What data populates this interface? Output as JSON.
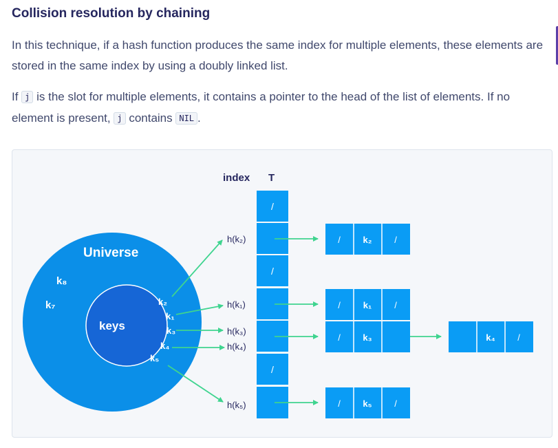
{
  "heading": "Collision resolution by chaining",
  "para1": "In this technique, if a hash function produces the same index for multiple elements, these elements are stored in the same index by using a doubly linked list.",
  "para2": {
    "t1": "If ",
    "c1": "j",
    "t2": " is the slot for multiple elements, it contains a pointer to the head of the list of elements. If no element is present, ",
    "c2": "j",
    "t3": " contains ",
    "c3": "NIL",
    "t4": "."
  },
  "diagram": {
    "index_header": "index",
    "table_header": "T",
    "universe_label": "Universe",
    "keys_label": "keys",
    "outer_keys": [
      "k₈",
      "k₇"
    ],
    "inner_keys": [
      "k₂",
      "k₁",
      "k₃",
      "k₄",
      "k₅"
    ],
    "slots": [
      "/",
      "",
      "/",
      "",
      "",
      "/",
      ""
    ],
    "hash_labels": [
      "h(k₂)",
      "h(k₁)",
      "h(k₃)",
      "h(k₄)",
      "h(k₅)"
    ],
    "nodes": [
      {
        "prev": "/",
        "key": "k₂",
        "next": "/"
      },
      {
        "prev": "/",
        "key": "k₁",
        "next": "/"
      },
      {
        "prev": "/",
        "key": "k₃",
        "next": ""
      },
      {
        "prev": "",
        "key": "k₄",
        "next": "/"
      },
      {
        "prev": "/",
        "key": "k₅",
        "next": "/"
      }
    ],
    "colors": {
      "table_blue": "#0a9cf5",
      "universe_blue": "#0b8fe8",
      "keys_blue": "#1666d6",
      "arrow_green": "#3fd48f"
    }
  }
}
